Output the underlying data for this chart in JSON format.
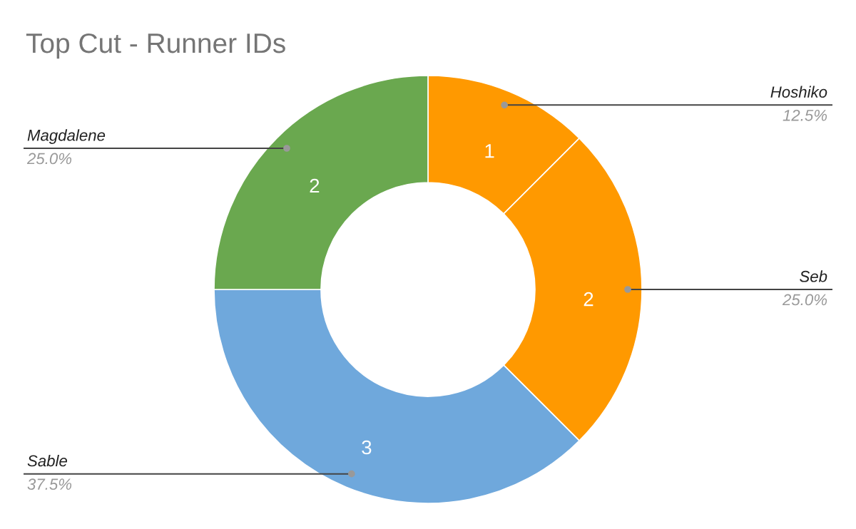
{
  "chart_data": {
    "type": "donut",
    "title": "Top Cut - Runner IDs",
    "categories": [
      "Hoshiko",
      "Seb",
      "Sable",
      "Magdalene"
    ],
    "values": [
      1,
      2,
      3,
      2
    ],
    "colors": [
      "#ff9900",
      "#ff9900",
      "#6fa8dc",
      "#6aa84f"
    ],
    "data_labels": true,
    "legend": false,
    "annotations": [
      {
        "text": "12.5%",
        "x": "Hoshiko"
      },
      {
        "text": "25.0%",
        "x": "Seb"
      },
      {
        "text": "37.5%",
        "x": "Sable"
      },
      {
        "text": "25.0%",
        "x": "Magdalene"
      }
    ]
  }
}
